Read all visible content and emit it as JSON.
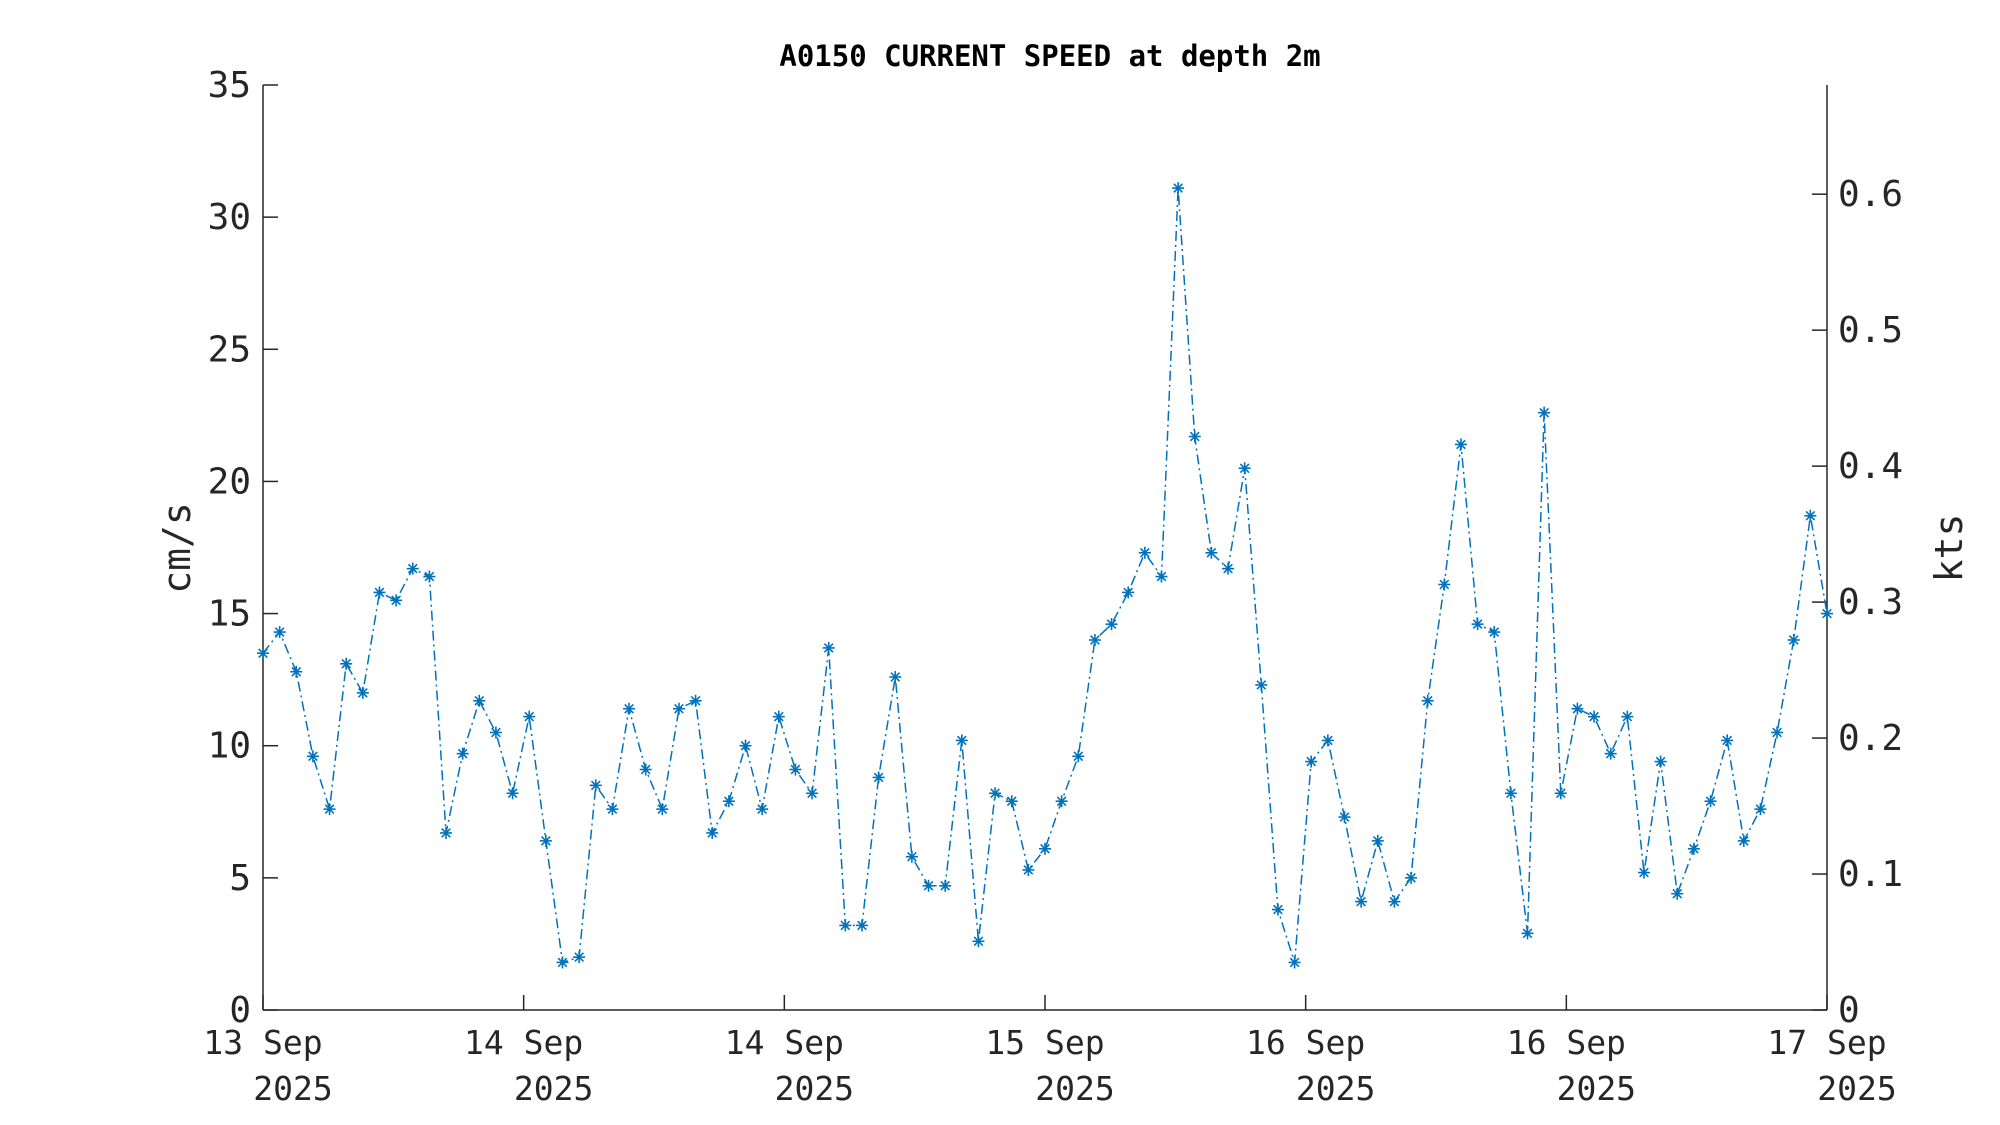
{
  "chart_data": {
    "type": "line",
    "title": "A0150 CURRENT SPEED at depth 2m",
    "ylabel": "cm/s",
    "ylabel_right": "kts",
    "ylim": [
      0,
      35
    ],
    "ylim_right_kts": [
      0,
      0.6803
    ],
    "yticks": [
      0,
      5,
      10,
      15,
      20,
      25,
      30,
      35
    ],
    "yticks_right": [
      "0",
      "0.1",
      "0.2",
      "0.3",
      "0.4",
      "0.5",
      "0.6"
    ],
    "yticks_right_values": [
      0,
      0.1,
      0.2,
      0.3,
      0.4,
      0.5,
      0.6
    ],
    "xticks": [
      {
        "line1": "13 Sep",
        "line2": "2025"
      },
      {
        "line1": "14 Sep",
        "line2": "2025"
      },
      {
        "line1": "14 Sep",
        "line2": "2025"
      },
      {
        "line1": "15 Sep",
        "line2": "2025"
      },
      {
        "line1": "16 Sep",
        "line2": "2025"
      },
      {
        "line1": "16 Sep",
        "line2": "2025"
      },
      {
        "line1": "17 Sep",
        "line2": "2025"
      }
    ],
    "grid": false,
    "legend": "none",
    "color": "#0072BD",
    "marker": "asterisk",
    "series": [
      {
        "values": [
          13.5,
          14.3,
          12.8,
          9.6,
          7.6,
          13.1,
          12.0,
          15.8,
          15.5,
          16.7,
          16.4,
          6.7,
          9.7,
          11.7,
          10.5,
          8.2,
          11.1,
          6.4,
          1.8,
          2.0,
          8.5,
          7.6,
          11.4,
          9.1,
          7.6,
          11.4,
          11.7,
          6.7,
          7.9,
          10.0,
          7.6,
          11.1,
          9.1,
          8.2,
          13.7,
          3.2,
          3.2,
          8.8,
          12.6,
          5.8,
          4.7,
          4.7,
          10.2,
          2.6,
          8.2,
          7.9,
          5.3,
          6.1,
          7.9,
          9.6,
          14.0,
          14.6,
          15.8,
          17.3,
          16.4,
          31.1,
          21.7,
          17.3,
          16.7,
          20.5,
          12.3,
          3.8,
          1.8,
          9.4,
          10.2,
          7.3,
          4.1,
          6.4,
          4.1,
          5.0,
          11.7,
          16.1,
          21.4,
          14.6,
          14.3,
          8.2,
          2.9,
          22.6,
          8.2,
          11.4,
          11.1,
          9.7,
          11.1,
          5.2,
          9.4,
          4.4,
          6.1,
          7.9,
          10.2,
          6.4,
          7.6,
          10.5,
          14.0,
          18.7,
          15.0
        ]
      }
    ]
  }
}
